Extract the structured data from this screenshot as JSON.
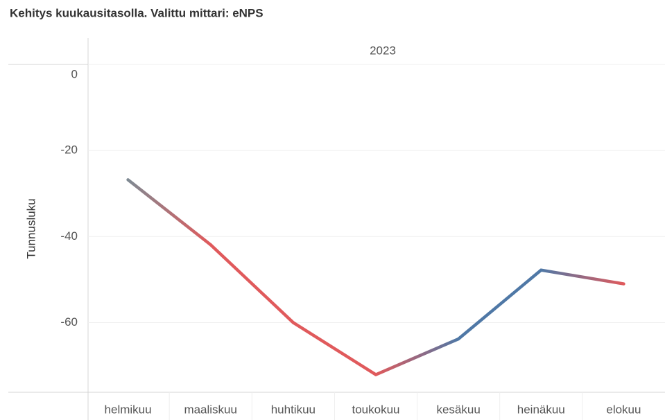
{
  "chart_data": {
    "type": "line",
    "title": "Kehitys kuukausitasolla. Valittu mittari: eNPS",
    "column_header": "2023",
    "y_label": "Tunnusluku",
    "categories": [
      "helmikuu",
      "maaliskuu",
      "huhtikuu",
      "toukokuu",
      "kesäkuu",
      "heinäkuu",
      "elokuu"
    ],
    "series": [
      {
        "name": "eNPS",
        "values": [
          -26.8,
          -41.9,
          -60,
          -72.1,
          -63.8,
          -47.8,
          -51
        ],
        "point_colors": [
          "#7f8a93",
          "#e05a5c",
          "#e05a5c",
          "#e05a5c",
          "#4f78a6",
          "#4f78a6",
          "#e05a5c"
        ]
      }
    ],
    "ylim": [
      -76.2,
      0
    ],
    "yticks": [
      0,
      -20,
      -40,
      -60
    ],
    "grid": true
  }
}
